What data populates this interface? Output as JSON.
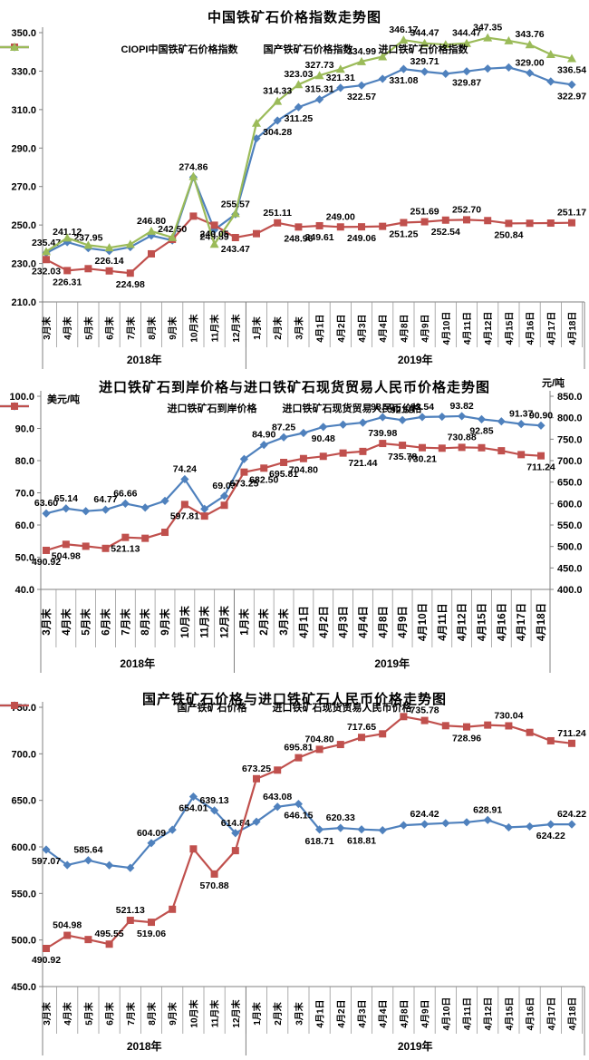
{
  "colors": {
    "blue": "#4F81BD",
    "red": "#C0504D",
    "green": "#9BBB59",
    "axis": "#808080",
    "text": "#000000"
  },
  "chart_data": [
    {
      "type": "line",
      "title": "中国铁矿石价格指数走势图",
      "categories": [
        "3月末",
        "4月末",
        "5月末",
        "6月末",
        "7月末",
        "8月末",
        "9月末",
        "10月末",
        "11月末",
        "12月末",
        "1月末",
        "2月末",
        "3月末",
        "4月1日",
        "4月2日",
        "4月3日",
        "4月4日",
        "4月8日",
        "4月9日",
        "4月10日",
        "4月11日",
        "4月12日",
        "4月15日",
        "4月16日",
        "4月17日",
        "4月18日"
      ],
      "year_groups": [
        {
          "label": "2018年",
          "count": 10
        },
        {
          "label": "2019年",
          "count": 16
        }
      ],
      "y_axis": {
        "ticks": [
          "350.0",
          "330.0",
          "310.0",
          "290.0",
          "270.0",
          "250.0",
          "230.0",
          "210.0"
        ],
        "min": 210,
        "max": 350
      },
      "series": [
        {
          "name": "CIOPI中国铁矿石价格指数",
          "color": "#4F81BD",
          "marker": "diamond",
          "axis": "left",
          "values": [
            235.47,
            241.12,
            237.95,
            236.5,
            238.5,
            244.5,
            242.0,
            274.86,
            247.5,
            255.57,
            295.0,
            304.28,
            311.25,
            315.31,
            321.31,
            322.57,
            326.0,
            331.08,
            329.71,
            328.6,
            329.87,
            331.3,
            331.9,
            329.0,
            324.6,
            322.97
          ],
          "value_labels": [
            "235.47",
            "241.12",
            "237.95",
            null,
            null,
            null,
            null,
            "274.86",
            null,
            "255.57",
            null,
            "304.28",
            "311.25",
            "315.31",
            "321.31",
            "322.57",
            null,
            "331.08",
            "329.71",
            null,
            "329.87",
            null,
            null,
            "329.00",
            null,
            "322.97"
          ],
          "label_pos": [
            "a",
            "a",
            "a",
            null,
            null,
            null,
            null,
            "a",
            null,
            "a",
            null,
            "b",
            "b",
            "a",
            "a",
            "b",
            null,
            "b",
            "a",
            null,
            "b",
            null,
            null,
            "a",
            null,
            "b"
          ]
        },
        {
          "name": "国产铁矿石价格指数",
          "color": "#C0504D",
          "marker": "square",
          "axis": "left",
          "values": [
            232.03,
            226.31,
            227.3,
            226.14,
            224.98,
            235.0,
            242.5,
            254.6,
            249.89,
            243.47,
            245.5,
            251.11,
            248.96,
            249.61,
            249.0,
            249.06,
            249.3,
            251.25,
            251.69,
            252.54,
            252.7,
            252.3,
            250.84,
            250.9,
            251.0,
            251.17
          ],
          "value_labels": [
            "232.03",
            "226.31",
            null,
            "226.14",
            "224.98",
            null,
            "242.50",
            null,
            "249.89",
            "243.47",
            null,
            "251.11",
            "248.96",
            "249.61",
            "249.00",
            "249.06",
            null,
            "251.25",
            "251.69",
            "252.54",
            "252.70",
            null,
            "250.84",
            null,
            null,
            "251.17"
          ],
          "label_pos": [
            "b",
            "b",
            null,
            "a",
            "b",
            null,
            "a",
            null,
            "b",
            "b",
            null,
            "a",
            "b",
            "b",
            "a",
            "b",
            null,
            "b",
            "a",
            "b",
            "a",
            null,
            "b",
            null,
            null,
            "a"
          ]
        },
        {
          "name": "进口铁矿石价格指数",
          "color": "#9BBB59",
          "marker": "triangle",
          "axis": "left",
          "values": [
            236.2,
            243.3,
            239.5,
            238.2,
            240.0,
            246.8,
            243.5,
            275.3,
            240.05,
            256.0,
            303.0,
            314.33,
            323.03,
            327.73,
            331.0,
            334.99,
            337.5,
            346.17,
            344.47,
            343.8,
            344.47,
            347.35,
            345.8,
            343.76,
            338.7,
            336.54
          ],
          "value_labels": [
            null,
            null,
            null,
            null,
            null,
            "246.80",
            null,
            null,
            "240.05",
            null,
            null,
            "314.33",
            "323.03",
            "327.73",
            null,
            "334.99",
            null,
            "346.17",
            "344.47",
            null,
            "344.47",
            "347.35",
            null,
            "343.76",
            null,
            "336.54"
          ],
          "label_pos": [
            null,
            null,
            null,
            null,
            null,
            "a",
            null,
            null,
            "a",
            null,
            null,
            "a",
            "a",
            "a",
            null,
            "a",
            null,
            "a",
            "a",
            null,
            "a",
            "a",
            null,
            "a",
            null,
            "b"
          ]
        }
      ]
    },
    {
      "type": "line",
      "title": "进口铁矿石到岸价格与进口铁矿石现货贸易人民币价格走势图",
      "unit_left": "美元/吨",
      "unit_right": "元/吨",
      "categories": [
        "3月末",
        "4月末",
        "5月末",
        "6月末",
        "7月末",
        "8月末",
        "9月末",
        "10月末",
        "11月末",
        "12月末",
        "1月末",
        "2月末",
        "3月末",
        "4月1日",
        "4月2日",
        "4月3日",
        "4月4日",
        "4月8日",
        "4月9日",
        "4月10日",
        "4月11日",
        "4月12日",
        "4月15日",
        "4月16日",
        "4月17日",
        "4月18日"
      ],
      "year_groups": [
        {
          "label": "2018年",
          "count": 10
        },
        {
          "label": "2019年",
          "count": 16
        }
      ],
      "y_axis": {
        "ticks": [
          "100.0",
          "90.0",
          "80.0",
          "70.0",
          "60.0",
          "50.0",
          "40.0"
        ],
        "min": 40,
        "max": 100
      },
      "y_axis_right": {
        "ticks": [
          "850.0",
          "800.0",
          "750.0",
          "700.0",
          "650.0",
          "600.0",
          "550.0",
          "500.0",
          "450.0",
          "400.0"
        ],
        "min": 400,
        "max": 850
      },
      "series": [
        {
          "name": "进口铁矿石到岸价格",
          "color": "#4F81BD",
          "marker": "diamond",
          "axis": "left",
          "values": [
            63.6,
            65.14,
            64.3,
            64.77,
            66.66,
            65.4,
            67.5,
            74.24,
            65.0,
            69.03,
            80.5,
            84.9,
            87.25,
            88.6,
            90.48,
            91.2,
            91.8,
            93.5,
            92.59,
            93.54,
            93.65,
            93.82,
            92.85,
            92.2,
            91.37,
            90.9
          ],
          "value_labels": [
            "63.60",
            "65.14",
            null,
            "64.77",
            "66.66",
            null,
            null,
            "74.24",
            null,
            "69.03",
            null,
            "84.90",
            "87.25",
            null,
            "90.48",
            null,
            null,
            "93.50",
            "92.59",
            "93.54",
            null,
            "93.82",
            "92.85",
            null,
            "91.37",
            "90.90"
          ],
          "label_pos": [
            "a",
            "a",
            null,
            "a",
            "a",
            null,
            null,
            "a",
            null,
            "a",
            null,
            "a",
            "a",
            null,
            "b",
            null,
            null,
            "a",
            "a",
            "a",
            null,
            "a",
            "b",
            null,
            "a",
            "a"
          ]
        },
        {
          "name": "进口铁矿石现货贸易人民币价格",
          "color": "#C0504D",
          "marker": "square",
          "axis": "right",
          "values": [
            490.92,
            504.98,
            500.5,
            495.55,
            521.13,
            519.06,
            533.0,
            597.81,
            570.88,
            596.0,
            673.25,
            682.5,
            695.81,
            704.8,
            710.0,
            717.65,
            721.44,
            739.98,
            735.78,
            730.21,
            728.96,
            730.88,
            730.04,
            723.0,
            714.0,
            711.24
          ],
          "value_labels": [
            "490.92",
            "504.98",
            null,
            null,
            "521.13",
            null,
            null,
            "597.81",
            null,
            null,
            "673.25",
            "682.50",
            "695.81",
            "704.80",
            null,
            null,
            "721.44",
            "739.98",
            "735.78",
            "730.21",
            null,
            "730.88",
            null,
            null,
            null,
            "711.24"
          ],
          "label_pos": [
            "b",
            "b",
            null,
            null,
            "b",
            null,
            null,
            "b",
            null,
            null,
            "b",
            "b",
            "b",
            "b",
            null,
            null,
            "b",
            "a",
            "b",
            "b",
            null,
            "a",
            null,
            null,
            null,
            "b"
          ]
        }
      ]
    },
    {
      "type": "line",
      "title": "国产铁矿石价格与进口铁矿石人民币价格走势图",
      "categories": [
        "3月末",
        "4月末",
        "5月末",
        "6月末",
        "7月末",
        "8月末",
        "9月末",
        "10月末",
        "11月末",
        "12月末",
        "1月末",
        "2月末",
        "3月末",
        "4月1日",
        "4月2日",
        "4月3日",
        "4月4日",
        "4月8日",
        "4月9日",
        "4月10日",
        "4月11日",
        "4月12日",
        "4月15日",
        "4月16日",
        "4月17日",
        "4月18日"
      ],
      "year_groups": [
        {
          "label": "2018年",
          "count": 10
        },
        {
          "label": "2019年",
          "count": 16
        }
      ],
      "y_axis": {
        "ticks": [
          "750.0",
          "700.0",
          "650.0",
          "600.0",
          "550.0",
          "500.0",
          "450.0"
        ],
        "min": 450,
        "max": 750
      },
      "series": [
        {
          "name": "国产铁矿石价格",
          "color": "#4F81BD",
          "marker": "diamond",
          "axis": "left",
          "values": [
            597.07,
            580.5,
            585.64,
            580.3,
            577.5,
            604.09,
            618.4,
            654.01,
            639.13,
            614.84,
            627.0,
            643.08,
            646.15,
            618.71,
            620.33,
            618.81,
            617.9,
            623.3,
            624.42,
            625.5,
            626.5,
            628.91,
            621.0,
            622.0,
            624.22,
            624.22
          ],
          "value_labels": [
            "597.07",
            null,
            "585.64",
            null,
            null,
            "604.09",
            null,
            "654.01",
            "639.13",
            "614.84",
            null,
            "643.08",
            "646.15",
            "618.71",
            "620.33",
            "618.81",
            null,
            null,
            "624.42",
            null,
            null,
            "628.91",
            null,
            null,
            "624.22",
            "624.22"
          ],
          "label_pos": [
            "b",
            null,
            "a",
            null,
            null,
            "a",
            null,
            "b",
            "a",
            "a",
            null,
            "a",
            "b",
            "b",
            "a",
            "b",
            null,
            null,
            "a",
            null,
            null,
            "a",
            null,
            null,
            "b",
            "a"
          ]
        },
        {
          "name": "进口铁矿石现货贸易人民币价格",
          "color": "#C0504D",
          "marker": "square",
          "axis": "left",
          "values": [
            490.92,
            504.98,
            500.5,
            495.55,
            521.13,
            519.06,
            533.0,
            597.81,
            570.88,
            596.0,
            673.25,
            682.5,
            695.81,
            704.8,
            710.0,
            717.65,
            721.44,
            739.98,
            735.78,
            730.21,
            728.96,
            730.88,
            730.04,
            723.0,
            714.0,
            711.24
          ],
          "value_labels": [
            "490.92",
            "504.98",
            null,
            "495.55",
            "521.13",
            "519.06",
            null,
            null,
            "570.88",
            null,
            "673.25",
            null,
            "695.81",
            "704.80",
            null,
            "717.65",
            null,
            null,
            "735.78",
            null,
            "728.96",
            null,
            "730.04",
            null,
            null,
            "711.24"
          ],
          "label_pos": [
            "b",
            "a",
            null,
            "a",
            "a",
            "b",
            null,
            null,
            "b",
            null,
            "a",
            null,
            "a",
            "a",
            null,
            "a",
            null,
            null,
            "a",
            null,
            "b",
            null,
            "a",
            null,
            null,
            "a"
          ]
        }
      ]
    }
  ]
}
